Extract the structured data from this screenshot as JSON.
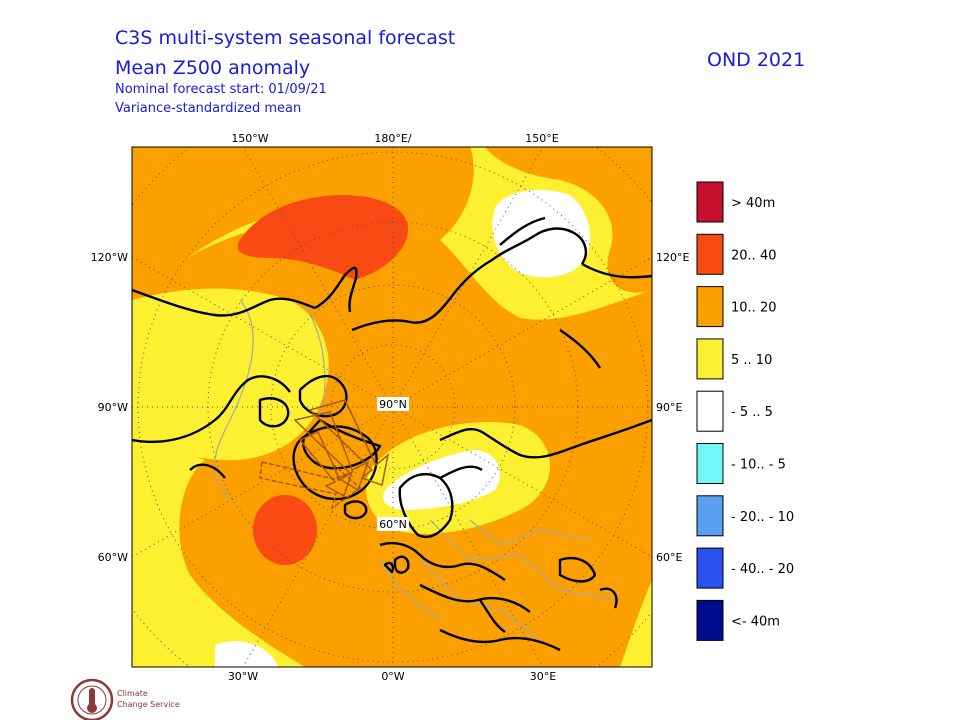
{
  "header": {
    "title": "C3S multi-system seasonal forecast",
    "subtitle": "Mean Z500 anomaly",
    "forecast_start": "Nominal forecast start: 01/09/21",
    "method": "Variance-standardized mean",
    "period": "OND 2021"
  },
  "map": {
    "projection": "north-polar-stereographic",
    "lon_labels": {
      "top": [
        "150°W",
        "180°E/",
        "150°E"
      ],
      "bottom": [
        "30°W",
        "0°W",
        "30°E"
      ],
      "left": [
        "120°W",
        "90°W",
        "60°W"
      ],
      "right": [
        "120°E",
        "90°E",
        "60°E"
      ]
    },
    "lat_labels": [
      "90°N",
      "60°N"
    ]
  },
  "legend": {
    "items": [
      {
        "label": ">  40m",
        "color": "#c8102e"
      },
      {
        "label": "20.. 40",
        "color": "#fa4a14"
      },
      {
        "label": "10.. 20",
        "color": "#fca000"
      },
      {
        "label": "5 .. 10",
        "color": "#fcf030"
      },
      {
        "label": "- 5 .. 5",
        "color": "#ffffff"
      },
      {
        "label": "- 10.. - 5",
        "color": "#70f8f8"
      },
      {
        "label": "- 20.. - 10",
        "color": "#5aa0f0"
      },
      {
        "label": "- 40.. - 20",
        "color": "#2a50f0"
      },
      {
        "label": "<- 40m",
        "color": "#000c90"
      }
    ]
  },
  "logo": {
    "line1": "Climate",
    "line2": "Change Service"
  },
  "colors": {
    "title": "#1a1adc",
    "coast": "#000000",
    "borders": "#a8a8a8",
    "arrows": "#a85a10"
  }
}
